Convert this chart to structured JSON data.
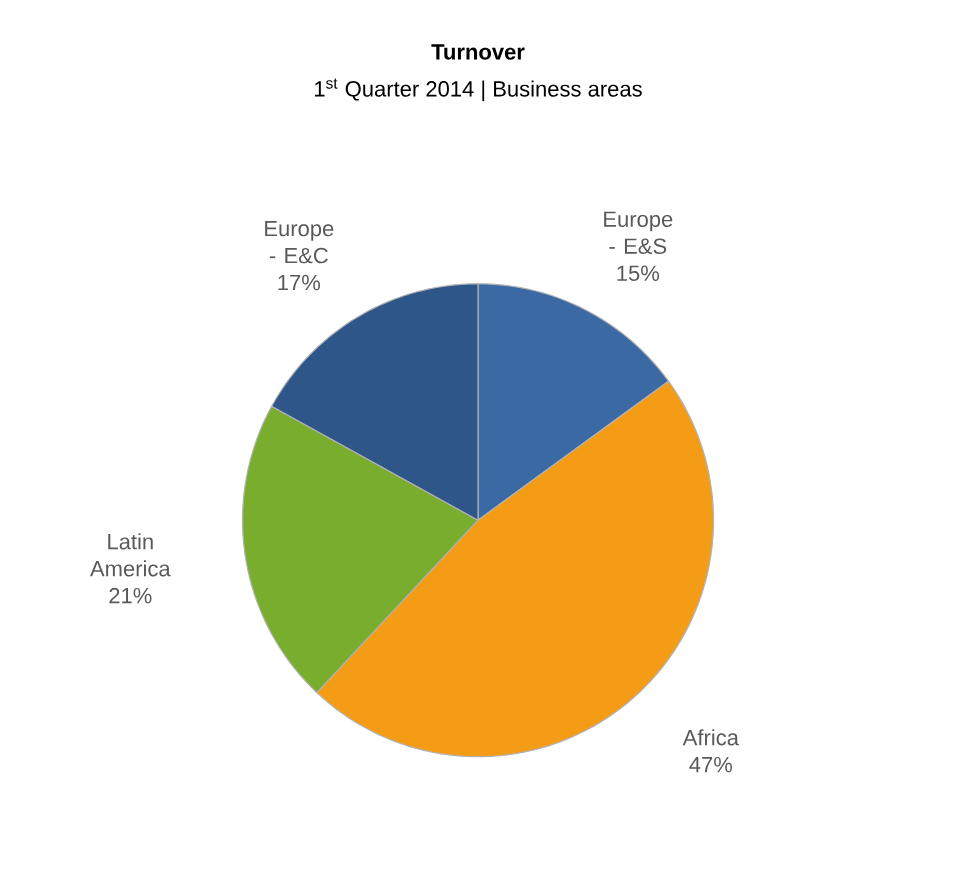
{
  "chart_data": {
    "type": "pie",
    "title": "Turnover",
    "subtitle": "1$^{st}$ Quarter 2014 | Business areas",
    "categories": [
      "Europe - E&S",
      "Africa",
      "Latin America",
      "Europe - E&C"
    ],
    "values": [
      15,
      47,
      21,
      17
    ],
    "value_labels": [
      "15%",
      "47%",
      "21%",
      "17%"
    ],
    "colors": [
      "#3b69a3",
      "#f59c17",
      "#79ad2e",
      "#2f5689"
    ]
  }
}
